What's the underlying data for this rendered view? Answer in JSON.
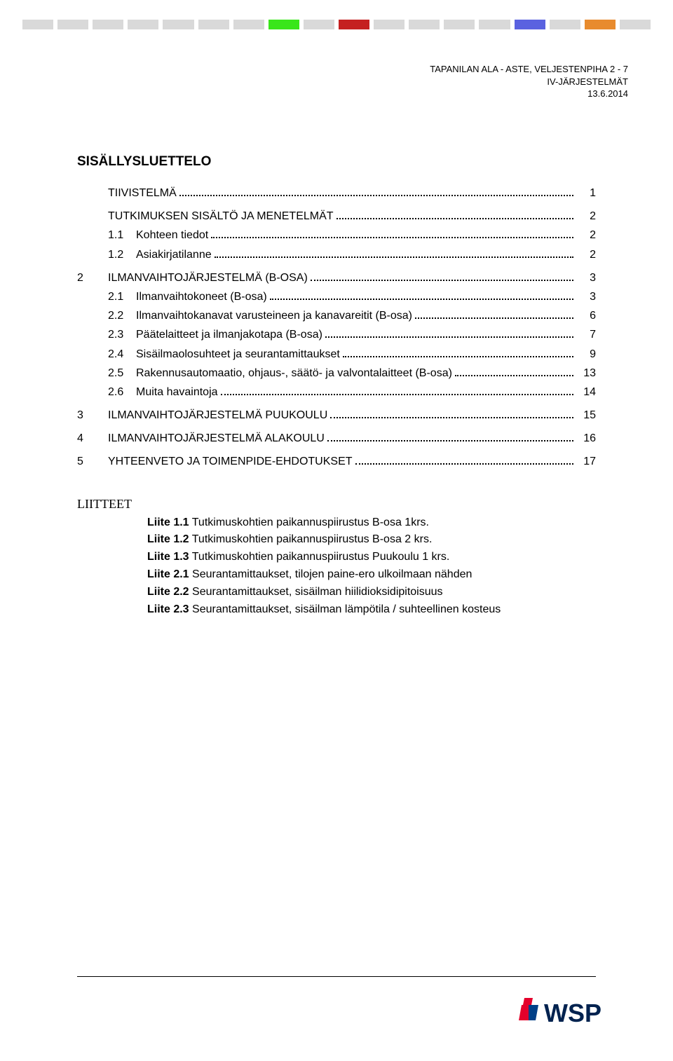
{
  "header": {
    "line1": "TAPANILAN ALA - ASTE, VELJESTENPIHA 2 - 7",
    "line2": "IV-JÄRJESTELMÄT",
    "line3": "13.6.2014"
  },
  "title": "SISÄLLYSLUETTELO",
  "color_strip": [
    "#d9d9d9",
    "#d9d9d9",
    "#d9d9d9",
    "#d9d9d9",
    "#d9d9d9",
    "#d9d9d9",
    "#d9d9d9",
    "#39e61a",
    "#d9d9d9",
    "#c52020",
    "#d9d9d9",
    "#d9d9d9",
    "#d9d9d9",
    "#d9d9d9",
    "#5a62e0",
    "#d9d9d9",
    "#e88b2e",
    "#d9d9d9"
  ],
  "toc": [
    {
      "type": "top",
      "num": "",
      "label": "TIIVISTELMÄ",
      "page": "1"
    },
    {
      "type": "top",
      "num": "",
      "label": "TUTKIMUKSEN SISÄLTÖ JA MENETELMÄT",
      "page": "2"
    },
    {
      "type": "sub",
      "num": "1.1",
      "label": "Kohteen tiedot",
      "page": "2"
    },
    {
      "type": "sub",
      "num": "1.2",
      "label": "Asiakirjatilanne",
      "page": "2"
    },
    {
      "type": "top",
      "num": "2",
      "label": "ILMANVAIHTOJÄRJESTELMÄ (B-OSA)",
      "page": "3"
    },
    {
      "type": "sub",
      "num": "2.1",
      "label": "Ilmanvaihtokoneet (B-osa)",
      "page": "3"
    },
    {
      "type": "sub",
      "num": "2.2",
      "label": "Ilmanvaihtokanavat varusteineen ja kanavareitit (B-osa)",
      "page": "6"
    },
    {
      "type": "sub",
      "num": "2.3",
      "label": "Päätelaitteet ja ilmanjakotapa (B-osa)",
      "page": "7"
    },
    {
      "type": "sub",
      "num": "2.4",
      "label": "Sisäilmaolosuhteet ja seurantamittaukset",
      "page": "9"
    },
    {
      "type": "sub",
      "num": "2.5",
      "label": "Rakennusautomaatio, ohjaus-, säätö- ja valvontalaitteet (B-osa)",
      "page": "13"
    },
    {
      "type": "sub",
      "num": "2.6",
      "label": "Muita havaintoja",
      "page": "14"
    },
    {
      "type": "top",
      "num": "3",
      "label": "ILMANVAIHTOJÄRJESTELMÄ PUUKOULU",
      "page": "15"
    },
    {
      "type": "top",
      "num": "4",
      "label": "ILMANVAIHTOJÄRJESTELMÄ ALAKOULU",
      "page": "16"
    },
    {
      "type": "top",
      "num": "5",
      "label": "YHTEENVETO JA TOIMENPIDE-EHDOTUKSET",
      "page": "17"
    }
  ],
  "liitteet": {
    "title": "LIITTEET",
    "items": [
      {
        "bold": "Liite 1.1",
        "text": " Tutkimuskohtien paikannuspiirustus B-osa 1krs."
      },
      {
        "bold": "Liite 1.2",
        "text": " Tutkimuskohtien paikannuspiirustus B-osa 2 krs."
      },
      {
        "bold": "Liite 1.3",
        "text": " Tutkimuskohtien paikannuspiirustus Puukoulu 1 krs."
      },
      {
        "bold": "Liite 2.1",
        "text": " Seurantamittaukset, tilojen paine-ero ulkoilmaan nähden"
      },
      {
        "bold": "Liite 2.2",
        "text": " Seurantamittaukset, sisäilman hiilidioksidipitoisuus"
      },
      {
        "bold": "Liite 2.3",
        "text": " Seurantamittaukset, sisäilman lämpötila / suhteellinen kosteus"
      }
    ]
  },
  "logo": {
    "text": "WSP",
    "text_color": "#00224f",
    "mark_red": "#e4002b",
    "mark_blue": "#003f87",
    "font_weight": 700
  }
}
